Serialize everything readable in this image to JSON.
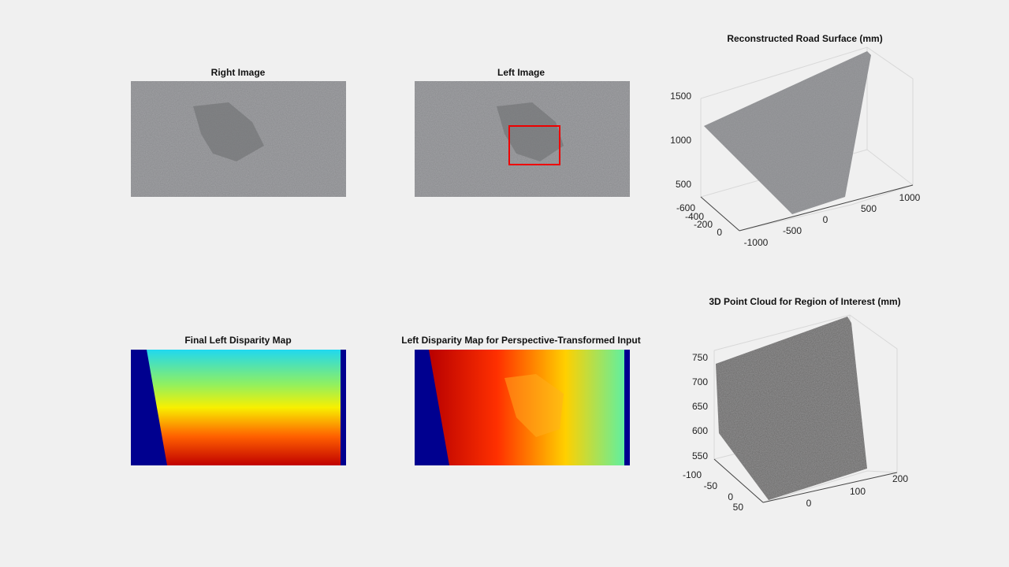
{
  "panels": [
    {
      "title": "Right Image"
    },
    {
      "title": "Left Image"
    },
    {
      "title": "Reconstructed Road Surface (mm)",
      "zticks": [
        500,
        1000,
        1500
      ],
      "yticks": [
        -600,
        -400,
        -200,
        0
      ],
      "xticks": [
        -1000,
        -500,
        0,
        500,
        1000
      ]
    },
    {
      "title": "Final Left Disparity Map"
    },
    {
      "title": "Left Disparity Map for Perspective-Transformed Input"
    },
    {
      "title": "3D Point Cloud for Region of Interest (mm)",
      "zticks": [
        550,
        600,
        650,
        700,
        750
      ],
      "yticks": [
        -100,
        -50,
        0,
        50
      ],
      "xticks": [
        0,
        100,
        200
      ]
    }
  ]
}
